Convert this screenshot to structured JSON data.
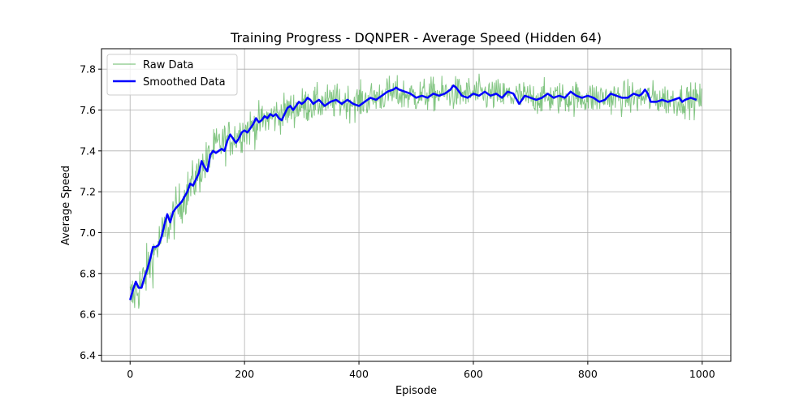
{
  "chart_data": {
    "type": "line",
    "title": "Training Progress - DQNPER - Average Speed (Hidden 64)",
    "xlabel": "Episode",
    "ylabel": "Average Speed",
    "xlim": [
      -50,
      1050
    ],
    "ylim": [
      6.37,
      7.9
    ],
    "xticks": [
      0,
      200,
      400,
      600,
      800,
      1000
    ],
    "yticks": [
      6.4,
      6.6,
      6.8,
      7.0,
      7.2,
      7.4,
      7.6,
      7.8
    ],
    "xtick_labels": [
      "0",
      "200",
      "400",
      "600",
      "800",
      "1000"
    ],
    "ytick_labels": [
      "6.4",
      "6.6",
      "6.8",
      "7.0",
      "7.2",
      "7.4",
      "7.6",
      "7.8"
    ],
    "grid": true,
    "legend_position": "top-left",
    "series": [
      {
        "name": "Raw Data",
        "color": "#5bb35b",
        "style": "thin-noisy",
        "x_start": 0,
        "x_step": 1,
        "count": 1000,
        "noise_amplitude": [
          0.13,
          0.08
        ],
        "envelope": [
          [
            0,
            6.67
          ],
          [
            20,
            6.75
          ],
          [
            50,
            6.95
          ],
          [
            100,
            7.2
          ],
          [
            150,
            7.42
          ],
          [
            200,
            7.5
          ],
          [
            250,
            7.57
          ],
          [
            300,
            7.62
          ],
          [
            350,
            7.64
          ],
          [
            400,
            7.64
          ],
          [
            450,
            7.68
          ],
          [
            500,
            7.67
          ],
          [
            550,
            7.68
          ],
          [
            600,
            7.68
          ],
          [
            650,
            7.67
          ],
          [
            700,
            7.66
          ],
          [
            750,
            7.66
          ],
          [
            800,
            7.66
          ],
          [
            850,
            7.66
          ],
          [
            900,
            7.66
          ],
          [
            950,
            7.65
          ],
          [
            999,
            7.65
          ]
        ]
      },
      {
        "name": "Smoothed Data",
        "color": "#0000ff",
        "style": "thick",
        "points": [
          [
            0,
            6.67
          ],
          [
            5,
            6.72
          ],
          [
            10,
            6.76
          ],
          [
            15,
            6.73
          ],
          [
            20,
            6.73
          ],
          [
            25,
            6.78
          ],
          [
            30,
            6.82
          ],
          [
            35,
            6.87
          ],
          [
            40,
            6.93
          ],
          [
            45,
            6.93
          ],
          [
            50,
            6.94
          ],
          [
            55,
            6.98
          ],
          [
            60,
            7.04
          ],
          [
            65,
            7.09
          ],
          [
            70,
            7.05
          ],
          [
            75,
            7.1
          ],
          [
            80,
            7.12
          ],
          [
            90,
            7.15
          ],
          [
            100,
            7.2
          ],
          [
            105,
            7.24
          ],
          [
            110,
            7.23
          ],
          [
            115,
            7.26
          ],
          [
            120,
            7.29
          ],
          [
            125,
            7.35
          ],
          [
            130,
            7.32
          ],
          [
            135,
            7.3
          ],
          [
            140,
            7.38
          ],
          [
            145,
            7.4
          ],
          [
            150,
            7.39
          ],
          [
            155,
            7.4
          ],
          [
            160,
            7.41
          ],
          [
            165,
            7.4
          ],
          [
            170,
            7.45
          ],
          [
            175,
            7.48
          ],
          [
            180,
            7.46
          ],
          [
            185,
            7.44
          ],
          [
            190,
            7.46
          ],
          [
            195,
            7.49
          ],
          [
            200,
            7.5
          ],
          [
            205,
            7.49
          ],
          [
            210,
            7.51
          ],
          [
            215,
            7.53
          ],
          [
            220,
            7.56
          ],
          [
            225,
            7.54
          ],
          [
            230,
            7.55
          ],
          [
            235,
            7.57
          ],
          [
            240,
            7.56
          ],
          [
            245,
            7.58
          ],
          [
            250,
            7.57
          ],
          [
            255,
            7.58
          ],
          [
            260,
            7.56
          ],
          [
            265,
            7.55
          ],
          [
            270,
            7.58
          ],
          [
            275,
            7.61
          ],
          [
            280,
            7.62
          ],
          [
            285,
            7.6
          ],
          [
            290,
            7.62
          ],
          [
            295,
            7.64
          ],
          [
            300,
            7.63
          ],
          [
            305,
            7.64
          ],
          [
            310,
            7.66
          ],
          [
            315,
            7.65
          ],
          [
            320,
            7.63
          ],
          [
            325,
            7.64
          ],
          [
            330,
            7.65
          ],
          [
            340,
            7.62
          ],
          [
            350,
            7.64
          ],
          [
            360,
            7.65
          ],
          [
            370,
            7.63
          ],
          [
            380,
            7.65
          ],
          [
            390,
            7.63
          ],
          [
            400,
            7.62
          ],
          [
            410,
            7.64
          ],
          [
            420,
            7.66
          ],
          [
            430,
            7.65
          ],
          [
            440,
            7.67
          ],
          [
            450,
            7.69
          ],
          [
            460,
            7.7
          ],
          [
            465,
            7.71
          ],
          [
            470,
            7.7
          ],
          [
            480,
            7.69
          ],
          [
            490,
            7.68
          ],
          [
            500,
            7.66
          ],
          [
            510,
            7.67
          ],
          [
            520,
            7.66
          ],
          [
            530,
            7.68
          ],
          [
            540,
            7.67
          ],
          [
            550,
            7.68
          ],
          [
            560,
            7.7
          ],
          [
            565,
            7.72
          ],
          [
            570,
            7.71
          ],
          [
            580,
            7.67
          ],
          [
            590,
            7.66
          ],
          [
            600,
            7.68
          ],
          [
            610,
            7.67
          ],
          [
            620,
            7.69
          ],
          [
            630,
            7.67
          ],
          [
            640,
            7.68
          ],
          [
            650,
            7.66
          ],
          [
            660,
            7.69
          ],
          [
            670,
            7.68
          ],
          [
            680,
            7.63
          ],
          [
            690,
            7.67
          ],
          [
            700,
            7.66
          ],
          [
            710,
            7.65
          ],
          [
            720,
            7.66
          ],
          [
            730,
            7.68
          ],
          [
            740,
            7.66
          ],
          [
            750,
            7.67
          ],
          [
            760,
            7.66
          ],
          [
            770,
            7.69
          ],
          [
            780,
            7.67
          ],
          [
            790,
            7.66
          ],
          [
            800,
            7.67
          ],
          [
            810,
            7.66
          ],
          [
            820,
            7.64
          ],
          [
            830,
            7.65
          ],
          [
            840,
            7.68
          ],
          [
            850,
            7.67
          ],
          [
            860,
            7.66
          ],
          [
            870,
            7.66
          ],
          [
            880,
            7.68
          ],
          [
            890,
            7.67
          ],
          [
            895,
            7.68
          ],
          [
            900,
            7.7
          ],
          [
            905,
            7.68
          ],
          [
            910,
            7.64
          ],
          [
            920,
            7.64
          ],
          [
            930,
            7.65
          ],
          [
            940,
            7.64
          ],
          [
            950,
            7.65
          ],
          [
            960,
            7.66
          ],
          [
            965,
            7.64
          ],
          [
            970,
            7.65
          ],
          [
            980,
            7.66
          ],
          [
            990,
            7.65
          ]
        ]
      }
    ]
  },
  "colors": {
    "axes": "#000000",
    "grid": "#b0b0b0",
    "background": "#ffffff",
    "legend_border": "#cccccc"
  }
}
